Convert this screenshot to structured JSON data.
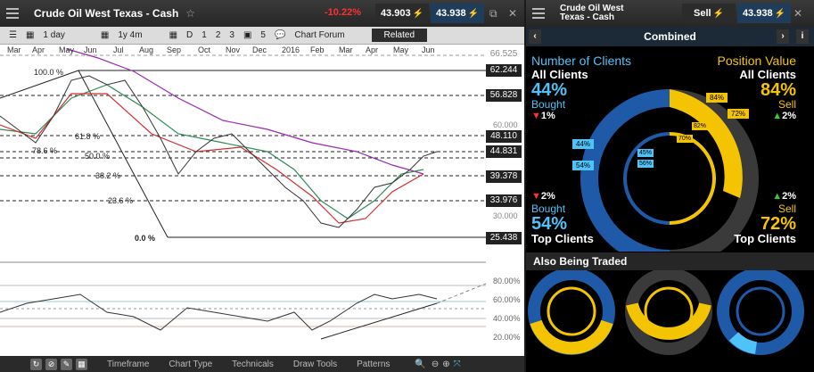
{
  "instrument": {
    "title": "Crude Oil West Texas - Cash",
    "change_pct": "-10.22%",
    "sell_price": "43.903",
    "buy_price": "43.938"
  },
  "toolbar": {
    "interval": "1 day",
    "range": "1y 4m",
    "periods": [
      "D",
      "1",
      "2",
      "3"
    ],
    "p5": "5",
    "chart_forum": "Chart Forum",
    "related": "Related"
  },
  "months": [
    "Mar",
    "Apr",
    "May",
    "Jun",
    "Jul",
    "Aug",
    "Sep",
    "Oct",
    "Nov",
    "Dec",
    "2016",
    "Feb",
    "Mar",
    "Apr",
    "May",
    "Jun"
  ],
  "fib_levels": [
    "100.0 %",
    "61.8 %",
    "50.0 %",
    "38.2 %",
    "23.6 %",
    "0.0 %",
    "78.6 %"
  ],
  "price_labels": [
    "66.525",
    "62.244",
    "56.828",
    "48.110",
    "44.831",
    "39.378",
    "33.976",
    "25.438"
  ],
  "price_axis": [
    "60.000",
    "30.000"
  ],
  "lower_axis": [
    "80.00%",
    "60.00%",
    "40.00%",
    "20.00%"
  ],
  "bottom_tabs": [
    "Timeframe",
    "Chart Type",
    "Technicals",
    "Draw Tools",
    "Patterns"
  ],
  "panel": {
    "title_line1": "Crude Oil West",
    "title_line2": "Texas - Cash",
    "sell": "Sell",
    "buy": "43.938",
    "combined": "Combined",
    "num_clients": "Number of Clients",
    "position_value": "Position Value",
    "all_clients": "All Clients",
    "bought_pct_all": "44%",
    "bought": "Bought",
    "bought_change_all": "1%",
    "sell_pct_all": "84%",
    "sell_change_all": "2%",
    "bought_change_top": "2%",
    "bought_pct_top": "54%",
    "top_clients": "Top Clients",
    "sell_change_top": "2%",
    "sell_pct_top": "72%",
    "ring_labels": [
      "44%",
      "54%",
      "45%",
      "56%",
      "84%",
      "72%",
      "82%",
      "70%"
    ],
    "also_traded": "Also Being Traded"
  },
  "colors": {
    "bought": "#1e5aa8",
    "sell": "#f5c400",
    "light_blue": "#4fc3f7",
    "neg": "#ff3030",
    "pos": "#33cc33"
  },
  "icons": [
    "menu-icon",
    "star-icon",
    "popout-icon",
    "close-icon",
    "info-icon",
    "chevron-left-icon",
    "chevron-right-icon"
  ]
}
